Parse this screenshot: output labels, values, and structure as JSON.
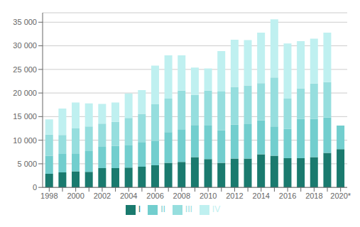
{
  "chart_data": {
    "type": "bar",
    "stacked": true,
    "categories": [
      "1998",
      null,
      "2000",
      null,
      "2002",
      null,
      "2004",
      null,
      "2006",
      null,
      "2008",
      null,
      "2010",
      null,
      "2012",
      null,
      "2014",
      null,
      "2016",
      null,
      "2018",
      null,
      "2020*"
    ],
    "series": [
      {
        "name": "I",
        "color": "#1a7a6e",
        "values": [
          2900,
          3200,
          3400,
          3300,
          4100,
          4100,
          4200,
          4400,
          4700,
          5200,
          5400,
          6400,
          6000,
          5200,
          6100,
          6100,
          7000,
          6700,
          6200,
          6200,
          6400,
          7300,
          8100
        ]
      },
      {
        "name": "II",
        "color": "#72cece",
        "values": [
          3800,
          3900,
          3800,
          4400,
          4500,
          4700,
          4700,
          5200,
          5200,
          6500,
          6900,
          6800,
          7100,
          6900,
          7200,
          7300,
          7200,
          6200,
          6200,
          8300,
          8100,
          7500,
          5000
        ]
      },
      {
        "name": "III",
        "color": "#96dede",
        "values": [
          4500,
          4000,
          5300,
          5200,
          4900,
          5100,
          5800,
          6000,
          7700,
          7100,
          8200,
          6400,
          7400,
          8200,
          8000,
          8200,
          7900,
          10400,
          6400,
          6500,
          7500,
          7500,
          0
        ]
      },
      {
        "name": "IV",
        "color": "#bff0f0",
        "values": [
          3200,
          5600,
          5500,
          4900,
          4200,
          4100,
          5200,
          5000,
          8200,
          9200,
          7500,
          5800,
          4700,
          8600,
          10000,
          9600,
          10700,
          12300,
          11700,
          10000,
          9500,
          10500,
          0
        ]
      }
    ],
    "ylim": [
      0,
      37000
    ],
    "yticks": [
      0,
      {
        "value": 5000,
        "label": "5 000"
      },
      {
        "value": 10000,
        "label": "10 000"
      },
      {
        "value": 15000,
        "label": "15 000"
      },
      {
        "value": 20000,
        "label": "20 000"
      },
      {
        "value": 25000,
        "label": "25 000"
      },
      {
        "value": 30000,
        "label": "30 000"
      },
      {
        "value": 35000,
        "label": "35 000"
      }
    ],
    "grid": true,
    "legend": "bottom"
  }
}
